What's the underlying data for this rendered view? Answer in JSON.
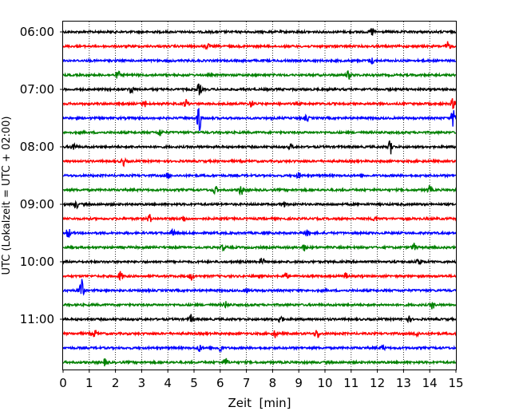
{
  "chart_data": {
    "type": "line",
    "title": "",
    "xlabel": "Zeit  [min]",
    "ylabel": "UTC (Lokalzeit = UTC + 02:00)",
    "xlim": [
      0,
      15
    ],
    "x_ticks": [
      "0",
      "1",
      "2",
      "3",
      "4",
      "5",
      "6",
      "7",
      "8",
      "9",
      "10",
      "11",
      "12",
      "13",
      "14",
      "15"
    ],
    "y_ticks": [
      "06:00",
      "07:00",
      "08:00",
      "09:00",
      "10:00",
      "11:00"
    ],
    "grid": "vertical dotted at each minute",
    "trace_interval_minutes": 15,
    "colors": {
      "black": "#000000",
      "red": "#ff0000",
      "blue": "#0000ff",
      "green": "#008000"
    },
    "traces": [
      {
        "start": "06:00",
        "color": "black",
        "events": [
          {
            "t": 11.8,
            "a": 1.0
          }
        ]
      },
      {
        "start": "06:15",
        "color": "red",
        "events": [
          {
            "t": 5.5,
            "a": 0.6
          },
          {
            "t": 14.7,
            "a": 1.0
          }
        ]
      },
      {
        "start": "06:30",
        "color": "blue",
        "events": [
          {
            "t": 11.8,
            "a": 0.6
          }
        ]
      },
      {
        "start": "06:45",
        "color": "green",
        "events": [
          {
            "t": 2.1,
            "a": 0.9
          },
          {
            "t": 10.9,
            "a": 0.9
          }
        ]
      },
      {
        "start": "07:00",
        "color": "black",
        "events": [
          {
            "t": 2.6,
            "a": 1.0
          },
          {
            "t": 5.2,
            "a": 1.3
          }
        ]
      },
      {
        "start": "07:15",
        "color": "red",
        "events": [
          {
            "t": 3.1,
            "a": 0.8
          },
          {
            "t": 4.7,
            "a": 1.0
          },
          {
            "t": 7.2,
            "a": 0.8
          },
          {
            "t": 14.9,
            "a": 1.2
          }
        ]
      },
      {
        "start": "07:30",
        "color": "blue",
        "events": [
          {
            "t": 5.2,
            "a": 3.2
          },
          {
            "t": 9.3,
            "a": 0.6
          },
          {
            "t": 14.9,
            "a": 2.0
          }
        ]
      },
      {
        "start": "07:45",
        "color": "green",
        "events": [
          {
            "t": 3.7,
            "a": 0.8
          }
        ]
      },
      {
        "start": "08:00",
        "color": "black",
        "events": [
          {
            "t": 0.4,
            "a": 0.9
          },
          {
            "t": 8.7,
            "a": 0.6
          },
          {
            "t": 12.5,
            "a": 1.6
          }
        ]
      },
      {
        "start": "08:15",
        "color": "red",
        "events": [
          {
            "t": 2.3,
            "a": 0.9
          }
        ]
      },
      {
        "start": "08:30",
        "color": "blue",
        "events": [
          {
            "t": 4.0,
            "a": 0.6
          },
          {
            "t": 9.0,
            "a": 0.6
          }
        ]
      },
      {
        "start": "08:45",
        "color": "green",
        "events": [
          {
            "t": 5.8,
            "a": 1.0
          },
          {
            "t": 6.8,
            "a": 1.2
          },
          {
            "t": 14.0,
            "a": 0.9
          }
        ]
      },
      {
        "start": "09:00",
        "color": "black",
        "events": [
          {
            "t": 0.5,
            "a": 0.8
          },
          {
            "t": 8.4,
            "a": 0.7
          }
        ]
      },
      {
        "start": "09:15",
        "color": "red",
        "events": [
          {
            "t": 3.3,
            "a": 0.9
          },
          {
            "t": 4.6,
            "a": 0.7
          },
          {
            "t": 11.9,
            "a": 0.6
          }
        ]
      },
      {
        "start": "09:30",
        "color": "blue",
        "events": [
          {
            "t": 0.2,
            "a": 1.2
          },
          {
            "t": 4.2,
            "a": 0.7
          },
          {
            "t": 9.3,
            "a": 0.6
          }
        ]
      },
      {
        "start": "09:45",
        "color": "green",
        "events": [
          {
            "t": 6.1,
            "a": 0.6
          },
          {
            "t": 9.2,
            "a": 0.7
          },
          {
            "t": 13.4,
            "a": 0.8
          }
        ]
      },
      {
        "start": "10:00",
        "color": "black",
        "events": [
          {
            "t": 7.6,
            "a": 0.9
          },
          {
            "t": 13.6,
            "a": 0.9
          }
        ]
      },
      {
        "start": "10:15",
        "color": "red",
        "events": [
          {
            "t": 2.2,
            "a": 1.1
          },
          {
            "t": 4.9,
            "a": 0.8
          },
          {
            "t": 8.5,
            "a": 0.8
          },
          {
            "t": 10.8,
            "a": 0.7
          }
        ]
      },
      {
        "start": "10:30",
        "color": "blue",
        "events": [
          {
            "t": 0.7,
            "a": 3.0
          },
          {
            "t": 7.0,
            "a": 0.5
          }
        ]
      },
      {
        "start": "10:45",
        "color": "green",
        "events": [
          {
            "t": 6.2,
            "a": 0.7
          },
          {
            "t": 14.1,
            "a": 0.9
          }
        ]
      },
      {
        "start": "11:00",
        "color": "black",
        "events": [
          {
            "t": 4.9,
            "a": 1.0
          },
          {
            "t": 8.3,
            "a": 1.0
          },
          {
            "t": 13.2,
            "a": 0.6
          }
        ]
      },
      {
        "start": "11:15",
        "color": "red",
        "events": [
          {
            "t": 1.2,
            "a": 0.9
          },
          {
            "t": 8.1,
            "a": 0.8
          },
          {
            "t": 9.7,
            "a": 1.1
          },
          {
            "t": 13.5,
            "a": 0.7
          }
        ]
      },
      {
        "start": "11:30",
        "color": "blue",
        "events": [
          {
            "t": 5.2,
            "a": 0.8
          },
          {
            "t": 6.0,
            "a": 0.9
          },
          {
            "t": 12.2,
            "a": 0.6
          }
        ]
      },
      {
        "start": "11:45",
        "color": "green",
        "events": [
          {
            "t": 1.6,
            "a": 0.7
          },
          {
            "t": 6.2,
            "a": 1.0
          }
        ]
      }
    ]
  }
}
